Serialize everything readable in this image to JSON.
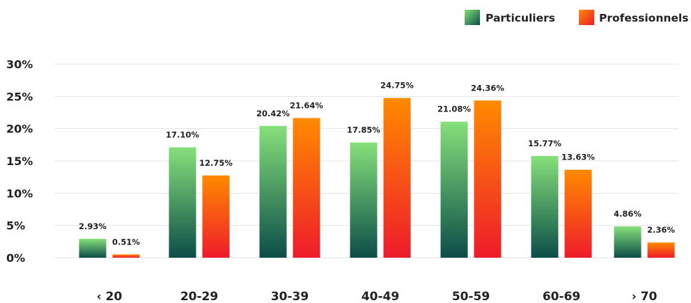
{
  "chart_data": {
    "type": "bar",
    "categories": [
      "‹ 20",
      "20-29",
      "30-39",
      "40-49",
      "50-59",
      "60-69",
      "› 70"
    ],
    "series": [
      {
        "name": "Particuliers",
        "values": [
          2.93,
          17.1,
          20.42,
          17.85,
          21.08,
          15.77,
          4.86
        ],
        "labels": [
          "2.93%",
          "17.10%",
          "20.42%",
          "17.85%",
          "21.08%",
          "15.77%",
          "4.86%"
        ],
        "gradient": [
          "#86e07a",
          "#0c4d48"
        ]
      },
      {
        "name": "Professionnels",
        "values": [
          0.51,
          12.75,
          21.64,
          24.75,
          24.36,
          13.63,
          2.36
        ],
        "labels": [
          "0.51%",
          "12.75%",
          "21.64%",
          "24.75%",
          "24.36%",
          "13.63%",
          "2.36%"
        ],
        "gradient": [
          "#ff8a00",
          "#ee1b2b"
        ]
      }
    ],
    "y_ticks": [
      0,
      5,
      10,
      15,
      20,
      25,
      30
    ],
    "y_tick_labels": [
      "0%",
      "5%",
      "10%",
      "15%",
      "20%",
      "25%",
      "30%"
    ],
    "ylim": [
      0,
      30
    ],
    "grid": true,
    "legend_position": "top-right"
  }
}
